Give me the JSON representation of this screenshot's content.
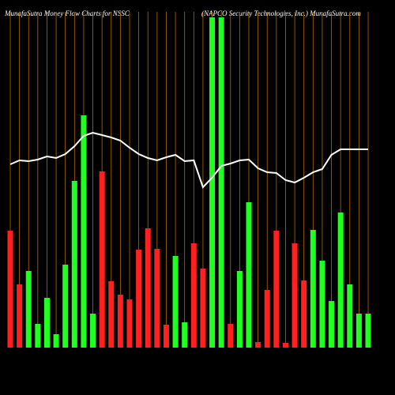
{
  "chart_data": {
    "type": "bar-line",
    "title": "MunafaSutra  Money Flow  Charts for NSSC",
    "subtitle": "(NAPCO Security Technologies,  Inc.) MunafaSutra.com",
    "ylim": [
      0,
      418
    ],
    "bar_values": [
      148,
      80,
      97,
      30,
      63,
      17,
      105,
      211,
      294,
      43,
      223,
      84,
      67,
      61,
      124,
      151,
      125,
      29,
      116,
      32,
      132,
      100,
      418,
      418,
      30,
      97,
      184,
      7,
      73,
      148,
      6,
      132,
      85,
      149,
      110,
      59,
      171,
      80,
      43,
      43
    ],
    "bar_colors": [
      "#ff2020",
      "#ff2020",
      "#20ff20",
      "#20ff20",
      "#20ff20",
      "#20ff20",
      "#20ff20",
      "#20ff20",
      "#20ff20",
      "#20ff20",
      "#ff2020",
      "#ff2020",
      "#ff2020",
      "#ff2020",
      "#ff2020",
      "#ff2020",
      "#ff2020",
      "#ff2020",
      "#20ff20",
      "#20ff20",
      "#ff2020",
      "#ff2020",
      "#20ff20",
      "#20ff20",
      "#ff2020",
      "#20ff20",
      "#20ff20",
      "#ff2020",
      "#ff2020",
      "#ff2020",
      "#ff2020",
      "#ff2020",
      "#ff2020",
      "#20ff20",
      "#20ff20",
      "#20ff20",
      "#20ff20",
      "#20ff20",
      "#20ff20",
      "#20ff20"
    ],
    "line_values": [
      232,
      237,
      236,
      238,
      242,
      240,
      245,
      255,
      268,
      272,
      269,
      266,
      262,
      253,
      245,
      240,
      237,
      241,
      244,
      236,
      237,
      203,
      215,
      230,
      233,
      237,
      238,
      227,
      222,
      221,
      212,
      209,
      215,
      222,
      226,
      244,
      251,
      251,
      251,
      251
    ],
    "line_color": "#ffffff",
    "gridline_color": "#b36b00"
  }
}
